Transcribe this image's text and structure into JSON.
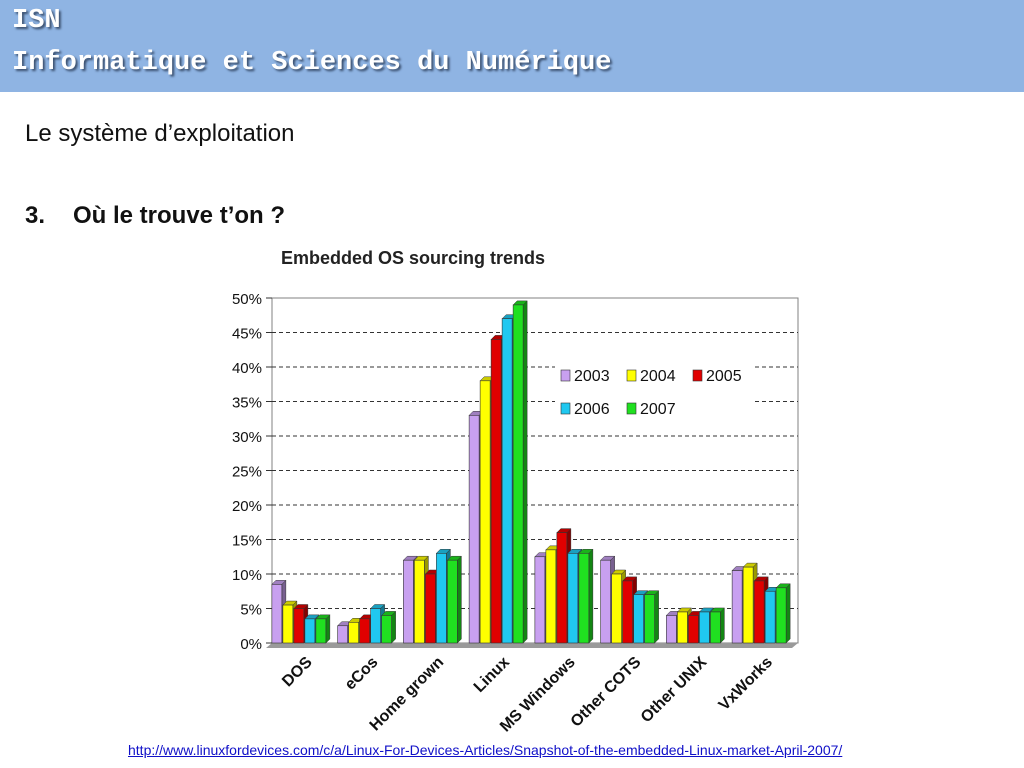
{
  "header": {
    "line1": "ISN",
    "line2": "Informatique et Sciences du Numérique"
  },
  "slide": {
    "subtitle": "Le système d’exploitation",
    "question_number": "3.",
    "question_text": "Où le trouve t’on ?"
  },
  "source_link": "http://www.linuxfordevices.com/c/a/Linux-For-Devices-Articles/Snapshot-of-the-embedded-Linux-market-April-2007/",
  "colors": {
    "banner": "#8fb4e3",
    "link": "#1010c8"
  },
  "chart_data": {
    "type": "bar",
    "title": "Embedded OS sourcing trends",
    "categories": [
      "DOS",
      "eCos",
      "Home grown",
      "Linux",
      "MS Windows",
      "Other COTS",
      "Other UNIX",
      "VxWorks"
    ],
    "series": [
      {
        "name": "2003",
        "color": "#c8a0f0",
        "values": [
          8.5,
          2.5,
          12,
          33,
          12.5,
          12,
          4,
          10.5
        ]
      },
      {
        "name": "2004",
        "color": "#ffff00",
        "values": [
          5.5,
          3,
          12,
          38,
          13.5,
          10,
          4.5,
          11
        ]
      },
      {
        "name": "2005",
        "color": "#e00000",
        "values": [
          5,
          3.5,
          10,
          44,
          16,
          9,
          4,
          9
        ]
      },
      {
        "name": "2006",
        "color": "#20c8f0",
        "values": [
          3.5,
          5,
          13,
          47,
          13,
          7,
          4.5,
          7.5
        ]
      },
      {
        "name": "2007",
        "color": "#20e020",
        "values": [
          3.5,
          4,
          12,
          49,
          13,
          7,
          4.5,
          8
        ]
      }
    ],
    "yticks": [
      "0%",
      "5%",
      "10%",
      "15%",
      "20%",
      "25%",
      "30%",
      "35%",
      "40%",
      "45%",
      "50%"
    ],
    "ylim": [
      0,
      50
    ],
    "grid": "dashed horizontal",
    "legend_position": "top-right"
  }
}
